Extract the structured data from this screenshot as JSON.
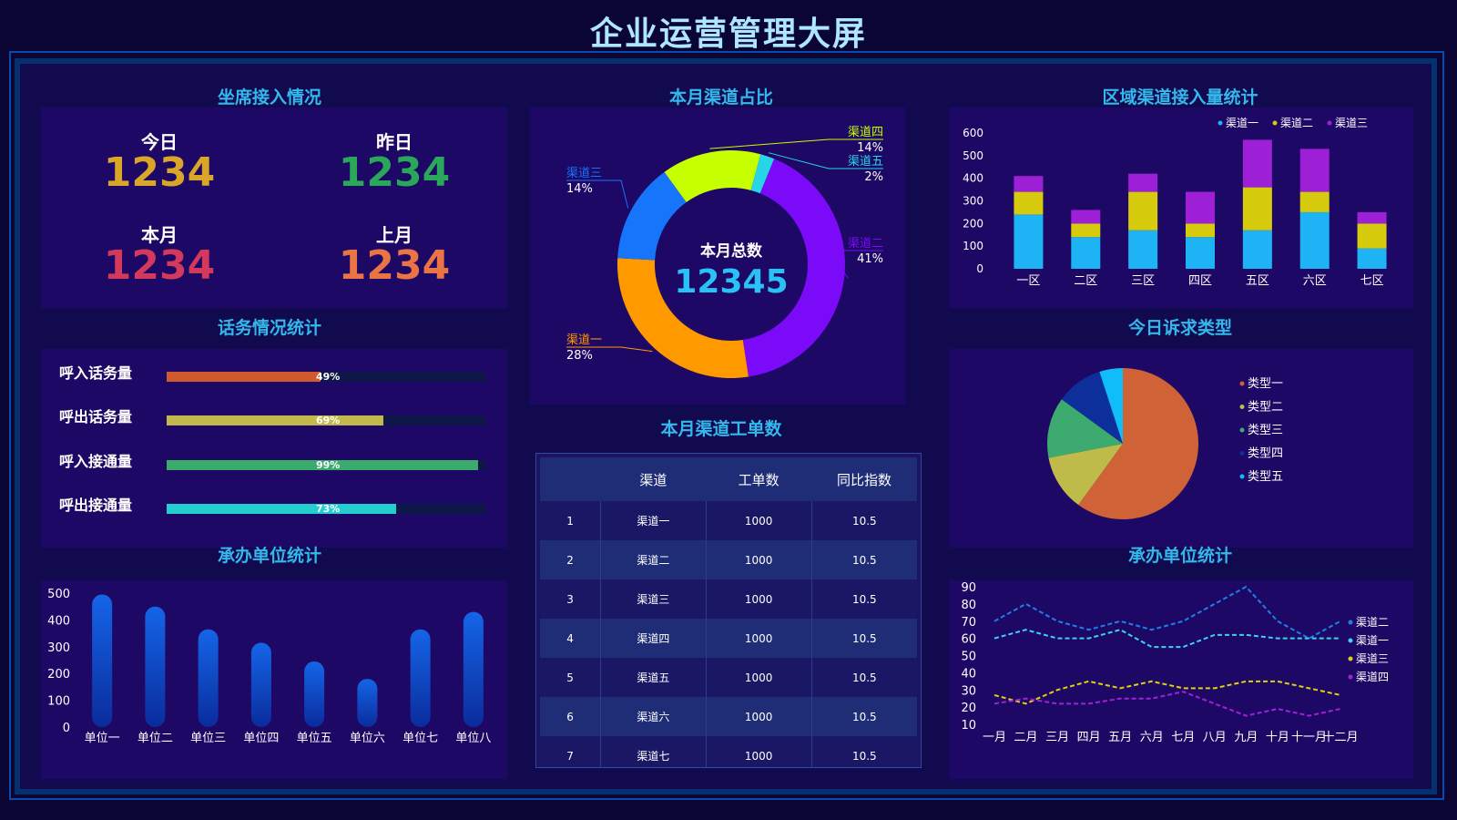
{
  "page": {
    "title": "企业运营管理大屏"
  },
  "seat": {
    "title": "坐席接入情况",
    "items": [
      {
        "label": "今日",
        "value": "1234",
        "color": "#d9a62a"
      },
      {
        "label": "昨日",
        "value": "1234",
        "color": "#2aa75a"
      },
      {
        "label": "本月",
        "value": "1234",
        "color": "#d2395c"
      },
      {
        "label": "上月",
        "value": "1234",
        "color": "#ea7445"
      }
    ]
  },
  "traffic": {
    "title": "话务情况统计",
    "rows": [
      {
        "label": "呼入话务量",
        "pct_label": "49%",
        "pct": 49,
        "color": "#ce5a2d"
      },
      {
        "label": "呼出话务量",
        "pct_label": "69%",
        "pct": 69,
        "color": "#c3b84b"
      },
      {
        "label": "呼入接通量",
        "pct_label": "99%",
        "pct": 99,
        "color": "#3bab6b"
      },
      {
        "label": "呼出接通量",
        "pct_label": "73%",
        "pct": 73,
        "color": "#24cdd0"
      }
    ]
  },
  "channel_share": {
    "title": "本月渠道占比",
    "center_label": "本月总数",
    "center_value": "12345"
  },
  "workorder": {
    "title": "本月渠道工单数",
    "headers": [
      "",
      "渠道",
      "工单数",
      "同比指数"
    ],
    "rows": [
      [
        "1",
        "渠道一",
        "1000",
        "10.5"
      ],
      [
        "2",
        "渠道二",
        "1000",
        "10.5"
      ],
      [
        "3",
        "渠道三",
        "1000",
        "10.5"
      ],
      [
        "4",
        "渠道四",
        "1000",
        "10.5"
      ],
      [
        "5",
        "渠道五",
        "1000",
        "10.5"
      ],
      [
        "6",
        "渠道六",
        "1000",
        "10.5"
      ],
      [
        "7",
        "渠道七",
        "1000",
        "10.5"
      ]
    ]
  },
  "region": {
    "title": "区域渠道接入量统计"
  },
  "appeal": {
    "title": "今日诉求类型"
  },
  "unit_bar": {
    "title": "承办单位统计"
  },
  "unit_line": {
    "title": "承办单位统计"
  },
  "chart_data": [
    {
      "id": "channel_share",
      "type": "pie",
      "donut": true,
      "categories": [
        "渠道一",
        "渠道二",
        "渠道三",
        "渠道四",
        "渠道五"
      ],
      "values": [
        28,
        41,
        14,
        14,
        2
      ],
      "labels": [
        "28%",
        "41%",
        "14%",
        "14%",
        "2%"
      ],
      "colors": [
        "#ff9900",
        "#7a0af7",
        "#1675fa",
        "#c6ff00",
        "#26d6e6"
      ],
      "extra_colors": [
        "#0e2a9c"
      ]
    },
    {
      "id": "region",
      "type": "bar",
      "stacked": true,
      "categories": [
        "一区",
        "二区",
        "三区",
        "四区",
        "五区",
        "六区",
        "七区"
      ],
      "series": [
        {
          "name": "渠道一",
          "values": [
            240,
            140,
            170,
            140,
            170,
            250,
            90
          ],
          "color": "#1eb3f5"
        },
        {
          "name": "渠道二",
          "values": [
            100,
            60,
            170,
            60,
            190,
            90,
            110
          ],
          "color": "#d6cb0c"
        },
        {
          "name": "渠道三",
          "values": [
            70,
            60,
            80,
            140,
            210,
            190,
            50
          ],
          "color": "#9d20d7"
        }
      ],
      "yticks": [
        0,
        100,
        200,
        300,
        400,
        500,
        600
      ],
      "ylim": [
        0,
        600
      ],
      "legend": "top-right"
    },
    {
      "id": "appeal",
      "type": "pie",
      "categories": [
        "类型一",
        "类型二",
        "类型三",
        "类型四",
        "类型五"
      ],
      "values": [
        60,
        12,
        13,
        10,
        5
      ],
      "colors": [
        "#cf6236",
        "#bfbb4b",
        "#3dab70",
        "#0d2f9c",
        "#10bdf6"
      ],
      "legend": "right"
    },
    {
      "id": "unit_bar",
      "type": "bar",
      "categories": [
        "单位一",
        "单位二",
        "单位三",
        "单位四",
        "单位五",
        "单位六",
        "单位七",
        "单位八"
      ],
      "values": [
        495,
        450,
        365,
        315,
        245,
        180,
        365,
        430
      ],
      "yticks": [
        0,
        100,
        200,
        300,
        400,
        500
      ],
      "ylim": [
        0,
        500
      ],
      "color": "#1660e0"
    },
    {
      "id": "unit_line",
      "type": "line",
      "categories": [
        "一月",
        "二月",
        "三月",
        "四月",
        "五月",
        "六月",
        "七月",
        "八月",
        "九月",
        "十月",
        "十一月",
        "十二月"
      ],
      "series": [
        {
          "name": "渠道二",
          "values": [
            70,
            80,
            70,
            65,
            70,
            65,
            70,
            80,
            90,
            70,
            60,
            70
          ],
          "color": "#1e7fe6"
        },
        {
          "name": "渠道一",
          "values": [
            60,
            65,
            60,
            60,
            65,
            55,
            55,
            62,
            62,
            60,
            60,
            60
          ],
          "color": "#3ed1f0"
        },
        {
          "name": "渠道三",
          "values": [
            27,
            22,
            30,
            35,
            31,
            35,
            31,
            31,
            35,
            35,
            31,
            27
          ],
          "color": "#e2cf12"
        },
        {
          "name": "渠道四",
          "values": [
            22,
            25,
            22,
            22,
            25,
            25,
            29,
            22,
            15,
            19,
            15,
            19
          ],
          "color": "#9f22d6"
        }
      ],
      "yticks": [
        10,
        20,
        30,
        40,
        50,
        60,
        70,
        80,
        90
      ],
      "ylim": [
        10,
        90
      ],
      "legend": "right"
    }
  ]
}
